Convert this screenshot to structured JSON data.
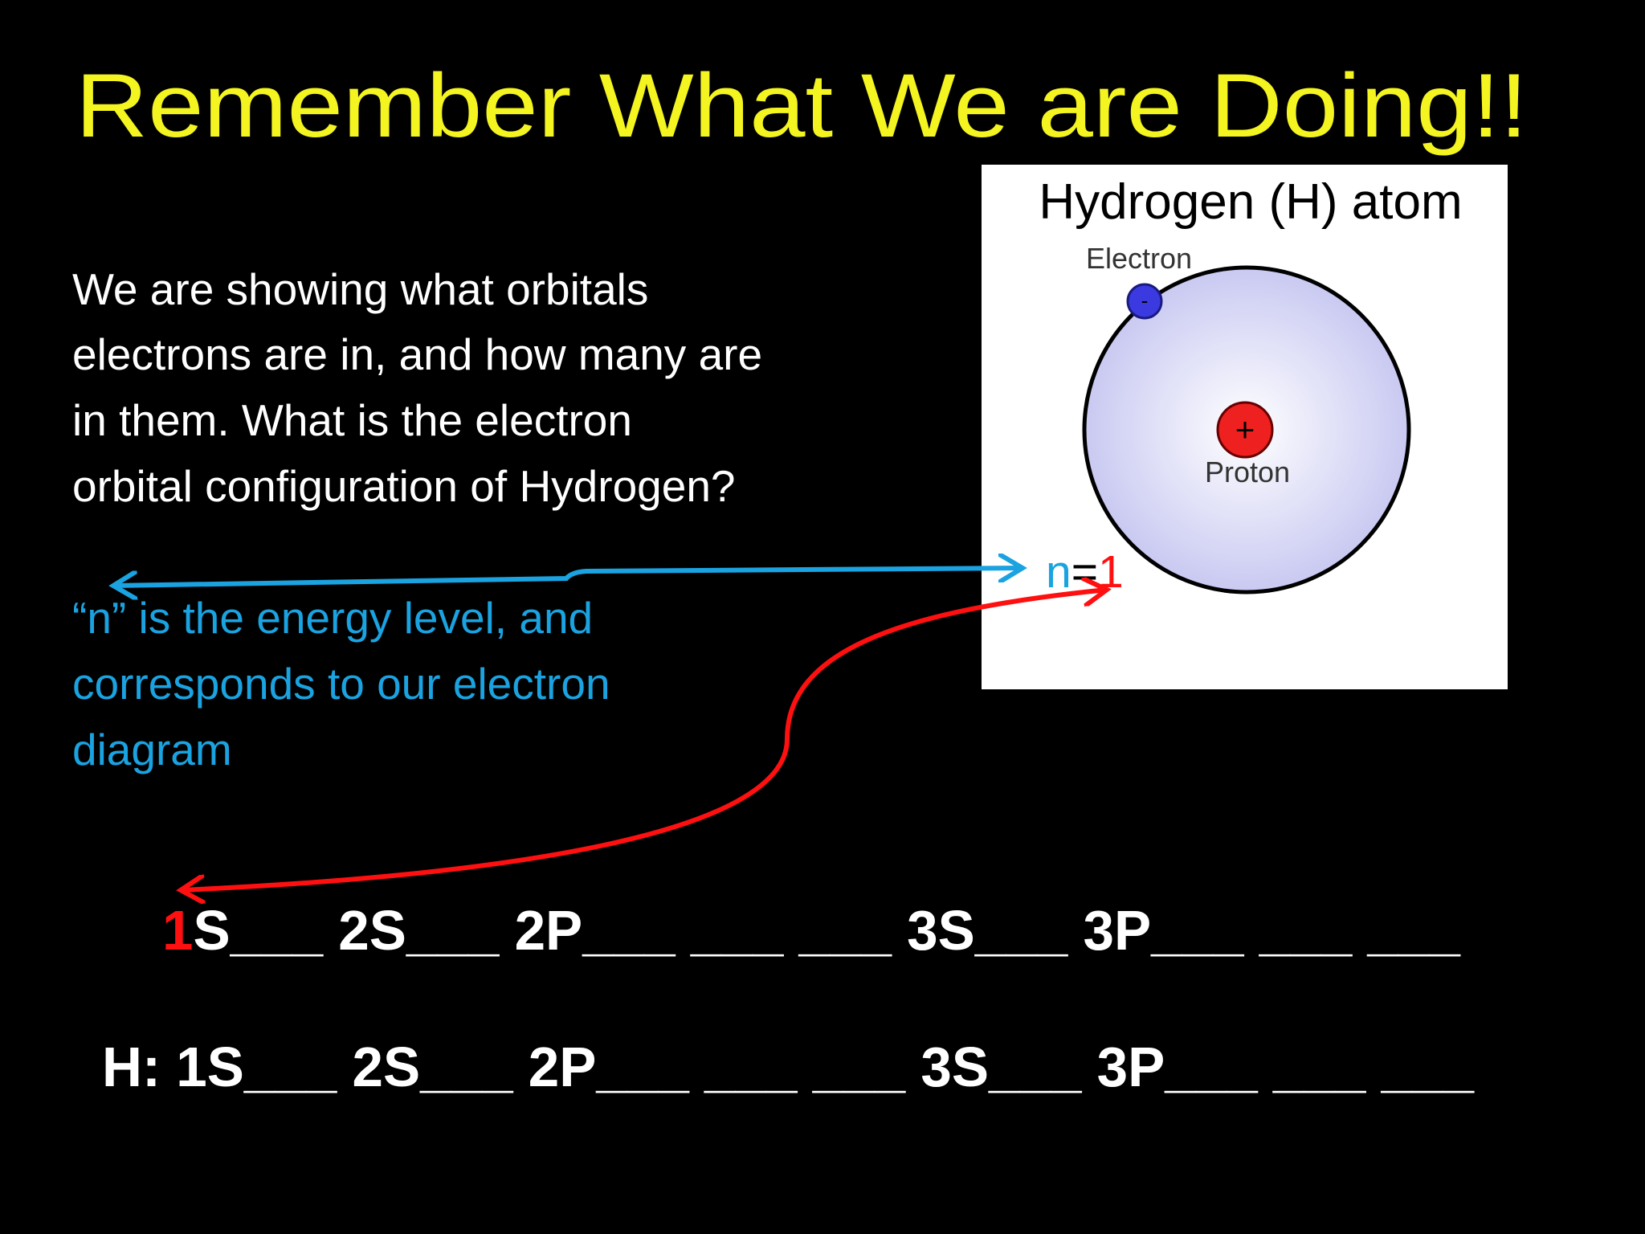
{
  "slide": {
    "title": "Remember What We are Doing!!",
    "body_lines": [
      "We are showing what orbitals",
      "electrons are in, and how many are",
      "in them. What is the electron",
      "orbital configuration of Hydrogen?"
    ],
    "note_lines": [
      "“n” is the energy level, and",
      "corresponds to our electron",
      "diagram"
    ],
    "figure": {
      "title": "Hydrogen (H) atom",
      "electron_label": "Electron",
      "electron_sign": "-",
      "proton_label": "Proton",
      "proton_sign": "+",
      "n_symbol": "n",
      "equals": "=",
      "n_value": "1"
    },
    "orbital_row": {
      "highlight": "1",
      "rest": "S___ 2S___ 2P___ ___ ___ 3S___ 3P___ ___ ___"
    },
    "hydrogen_row": "H: 1S___ 2S___ 2P___ ___ ___ 3S___ 3P___ ___ ___"
  }
}
